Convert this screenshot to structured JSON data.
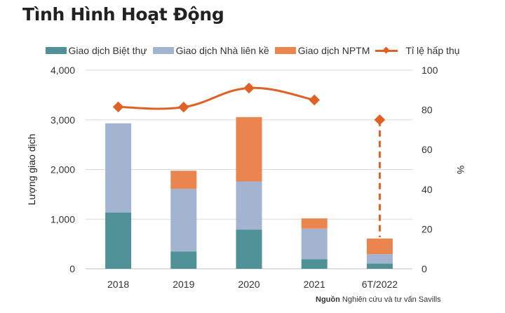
{
  "title": "Tình Hình Hoạt Động",
  "source": {
    "label": "Nguồn",
    "text": "Nghiên cứu và tư vấn Savills"
  },
  "chart_data": {
    "type": "bar",
    "stacked": true,
    "categories": [
      "2018",
      "2019",
      "2020",
      "2021",
      "6T/2022"
    ],
    "series": [
      {
        "name": "Giao dịch Biệt thự",
        "color": "#4f9196",
        "values": [
          1135,
          350,
          790,
          195,
          105
        ]
      },
      {
        "name": "Giao dịch Nhà liên kề",
        "color": "#a3b4d0",
        "values": [
          1795,
          1260,
          970,
          615,
          190
        ]
      },
      {
        "name": "Giao dịch NPTM",
        "color": "#eb8550",
        "values": [
          0,
          365,
          1295,
          205,
          315
        ]
      }
    ],
    "line_series": {
      "name": "Tỉ lệ hấp thụ",
      "color": "#e06126",
      "axis": "right",
      "values": [
        81.5,
        81.4,
        91,
        85,
        75
      ]
    },
    "ylabel": "Lượng giao dịch",
    "ylim": [
      0,
      4000
    ],
    "yticks": [
      "0",
      "1,000",
      "2,000",
      "3,000",
      "4,000"
    ],
    "y2label": "%",
    "y2lim": [
      0,
      100
    ],
    "y2ticks": [
      "0",
      "20",
      "40",
      "60",
      "80",
      "100"
    ],
    "grid": true,
    "legend": "top"
  }
}
